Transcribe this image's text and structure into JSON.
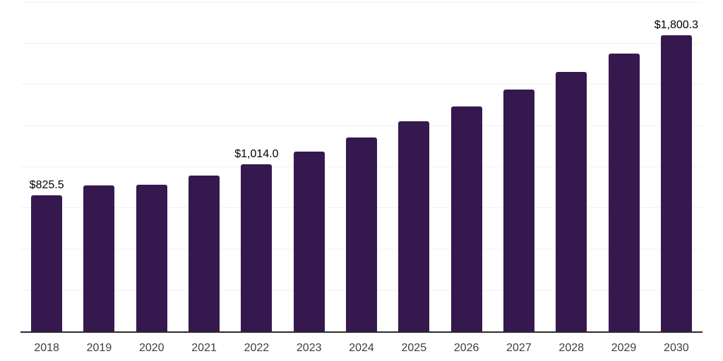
{
  "chart_data": {
    "type": "bar",
    "title": "",
    "xlabel": "",
    "ylabel": "",
    "categories": [
      "2018",
      "2019",
      "2020",
      "2021",
      "2022",
      "2023",
      "2024",
      "2025",
      "2026",
      "2027",
      "2028",
      "2029",
      "2030"
    ],
    "values": [
      825.5,
      888.0,
      888.9,
      946.6,
      1014.0,
      1092.0,
      1179.4,
      1274.7,
      1367.0,
      1467.5,
      1576.8,
      1688.4,
      1800.3
    ],
    "value_labels": [
      "$825.5",
      "",
      "",
      "",
      "$1,014.0",
      "",
      "",
      "",
      "",
      "",
      "",
      "",
      "$1,800.3"
    ],
    "ylim": [
      0,
      2000
    ],
    "gridline_step": 250,
    "grid": true,
    "legend_position": "none",
    "y_axis_tick_labels_visible": false,
    "value_prefix": "$",
    "colors": {
      "bar": "#35194E",
      "gridline": "#f2f2f2",
      "axis_line": "#2b2b2b",
      "value_label_text": "#000000",
      "x_tick_text": "#3d3d3d",
      "background": "#ffffff"
    }
  }
}
